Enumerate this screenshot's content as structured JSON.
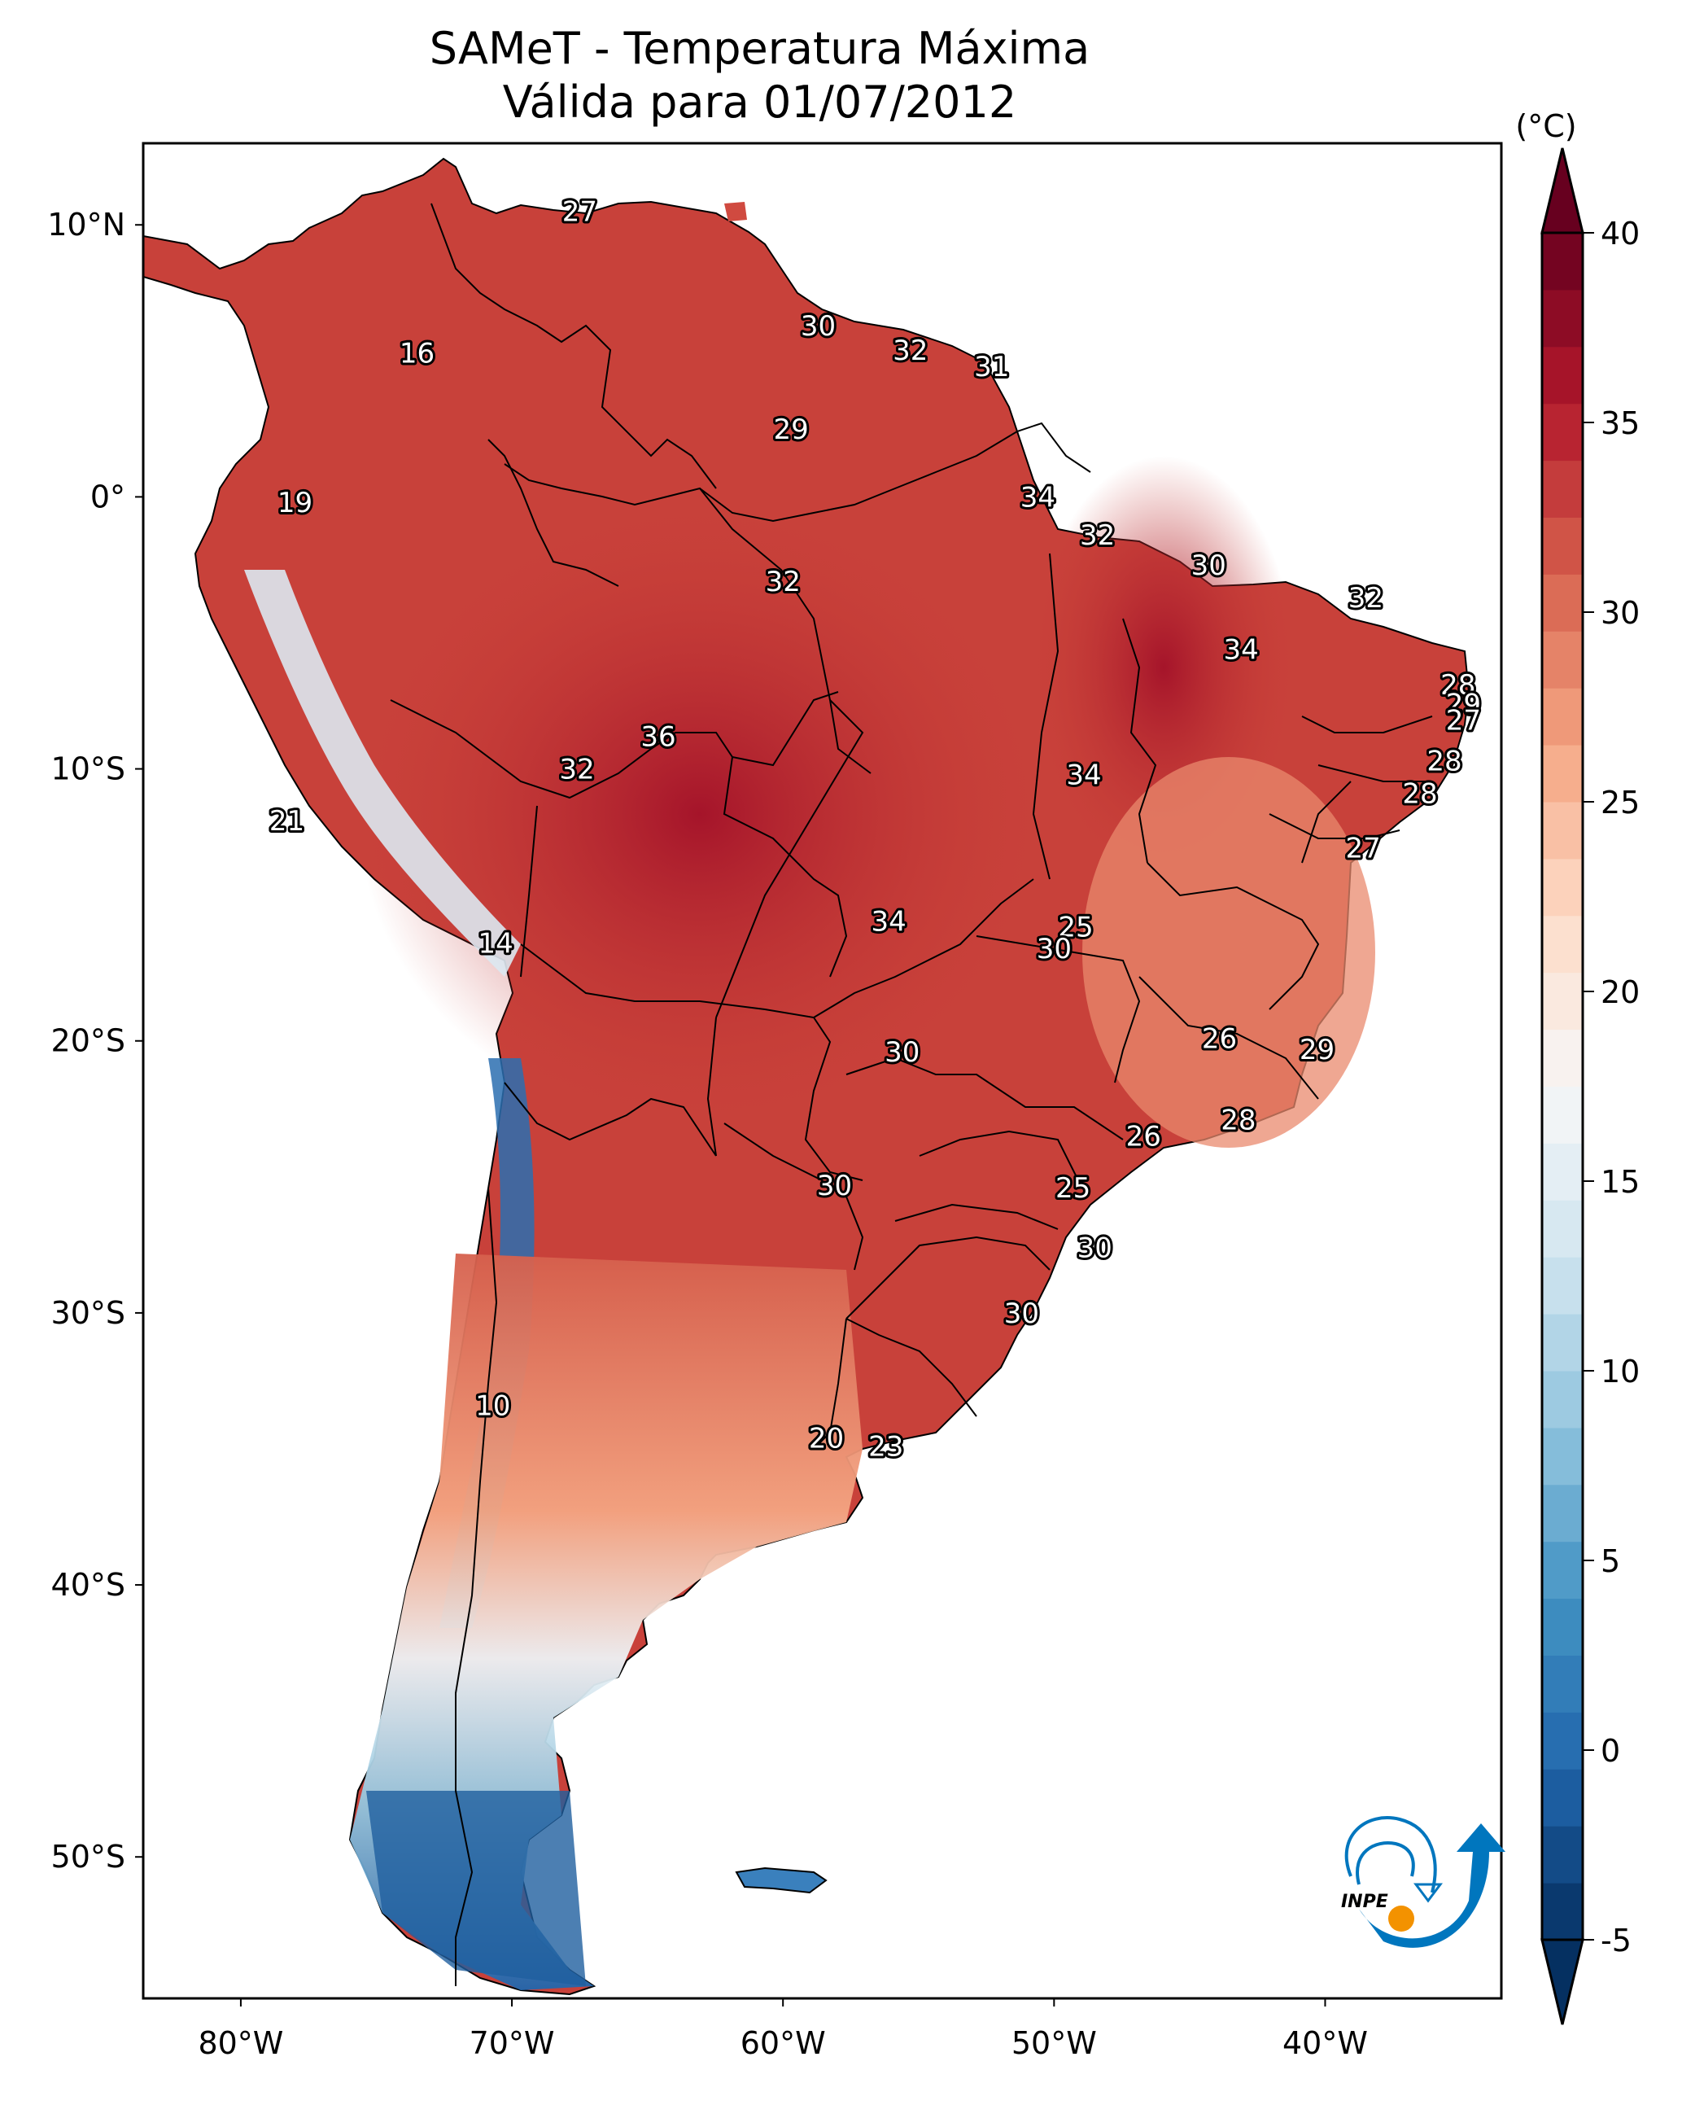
{
  "header": {
    "title_line1": "SAMeT - Temperatura Máxima",
    "title_line2": "Válida para 01/07/2012"
  },
  "colorbar": {
    "unit_label": "(°C)",
    "min": -5,
    "max": 40,
    "extend": "both",
    "ticks": [
      "-5",
      "0",
      "5",
      "10",
      "15",
      "20",
      "25",
      "30",
      "35",
      "40"
    ],
    "colormap": "RdBu_r",
    "colors": [
      "#053061",
      "#2166ac",
      "#4393c3",
      "#92c5de",
      "#d1e5f0",
      "#f7f7f7",
      "#fddbc7",
      "#f4a582",
      "#d6604d",
      "#b2182b",
      "#67001f"
    ]
  },
  "logo": {
    "text": "INPE",
    "blue": "#0076be",
    "orange": "#f39200"
  },
  "chart_data": {
    "type": "heatmap",
    "title": "SAMeT - Temperatura Máxima",
    "subtitle": "Válida para 01/07/2012",
    "variable": "Maximum temperature",
    "unit": "°C",
    "xlabel": "",
    "ylabel": "",
    "x_ticks": [
      "80°W",
      "70°W",
      "60°W",
      "50°W",
      "40°W"
    ],
    "x_tick_values": [
      -80,
      -70,
      -60,
      -50,
      -40
    ],
    "y_ticks": [
      "10°N",
      "0°",
      "10°S",
      "20°S",
      "30°S",
      "40°S",
      "50°S"
    ],
    "y_tick_values": [
      10,
      0,
      -10,
      -20,
      -30,
      -40,
      -50
    ],
    "lon_range": [
      -83.6,
      -33.5
    ],
    "lat_range": [
      -55.2,
      13.0
    ],
    "color_range": [
      -5,
      40
    ],
    "point_labels": [
      {
        "lon": -67.5,
        "lat": 10.5,
        "value": 27
      },
      {
        "lon": -73.5,
        "lat": 5.3,
        "value": 16
      },
      {
        "lon": -78.0,
        "lat": -0.2,
        "value": 19
      },
      {
        "lon": -58.7,
        "lat": 6.3,
        "value": 30
      },
      {
        "lon": -55.3,
        "lat": 5.4,
        "value": 32
      },
      {
        "lon": -52.3,
        "lat": 4.8,
        "value": 31
      },
      {
        "lon": -59.7,
        "lat": 2.5,
        "value": 29
      },
      {
        "lon": -50.6,
        "lat": 0.0,
        "value": 34
      },
      {
        "lon": -48.4,
        "lat": -1.4,
        "value": 32
      },
      {
        "lon": -60.0,
        "lat": -3.1,
        "value": 32
      },
      {
        "lon": -44.3,
        "lat": -2.5,
        "value": 30
      },
      {
        "lon": -43.1,
        "lat": -5.6,
        "value": 34
      },
      {
        "lon": -38.5,
        "lat": -3.7,
        "value": 32
      },
      {
        "lon": -35.1,
        "lat": -6.9,
        "value": 28
      },
      {
        "lon": -34.9,
        "lat": -7.6,
        "value": 29
      },
      {
        "lon": -34.9,
        "lat": -8.2,
        "value": 27
      },
      {
        "lon": -35.6,
        "lat": -9.7,
        "value": 28
      },
      {
        "lon": -36.5,
        "lat": -10.9,
        "value": 28
      },
      {
        "lon": -38.6,
        "lat": -12.9,
        "value": 27
      },
      {
        "lon": -64.6,
        "lat": -8.8,
        "value": 36
      },
      {
        "lon": -67.6,
        "lat": -10.0,
        "value": 32
      },
      {
        "lon": -48.9,
        "lat": -10.2,
        "value": 34
      },
      {
        "lon": -78.3,
        "lat": -11.9,
        "value": 21
      },
      {
        "lon": -70.6,
        "lat": -16.4,
        "value": 14
      },
      {
        "lon": -56.1,
        "lat": -15.6,
        "value": 34
      },
      {
        "lon": -49.2,
        "lat": -15.8,
        "value": 25
      },
      {
        "lon": -50.0,
        "lat": -16.6,
        "value": 30
      },
      {
        "lon": -43.9,
        "lat": -19.9,
        "value": 26
      },
      {
        "lon": -40.3,
        "lat": -20.3,
        "value": 29
      },
      {
        "lon": -55.6,
        "lat": -20.4,
        "value": 30
      },
      {
        "lon": -43.2,
        "lat": -22.9,
        "value": 28
      },
      {
        "lon": -46.7,
        "lat": -23.5,
        "value": 26
      },
      {
        "lon": -58.1,
        "lat": -25.3,
        "value": 30
      },
      {
        "lon": -49.3,
        "lat": -25.4,
        "value": 25
      },
      {
        "lon": -48.5,
        "lat": -27.6,
        "value": 30
      },
      {
        "lon": -51.2,
        "lat": -30.0,
        "value": 30
      },
      {
        "lon": -70.7,
        "lat": -33.4,
        "value": 10
      },
      {
        "lon": -58.4,
        "lat": -34.6,
        "value": 20
      },
      {
        "lon": -56.2,
        "lat": -34.9,
        "value": 23
      }
    ]
  }
}
